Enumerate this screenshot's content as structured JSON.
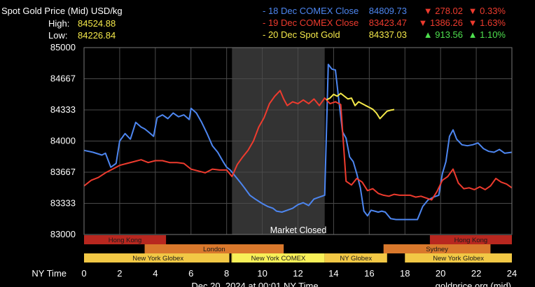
{
  "header": {
    "title": "Spot Gold Price (Mid) USD/kg",
    "high_label": "High:",
    "high_value": "84524.88",
    "low_label": "Low:",
    "low_value": "84226.84"
  },
  "legend": [
    {
      "label": "- 18 Dec COMEX Close",
      "value": "84809.73",
      "change": "▼ 278.02",
      "pct": "▼ 0.33%",
      "color": "#4d86f0",
      "change_color": "#ee3b2e"
    },
    {
      "label": "- 19 Dec COMEX Close",
      "value": "83423.47",
      "change": "▼ 1386.26",
      "pct": "▼ 1.63%",
      "color": "#ee3b2e",
      "change_color": "#ee3b2e"
    },
    {
      "label": "- 20 Dec Spot Gold",
      "value": "84337.03",
      "change": "▲ 913.56",
      "pct": "▲ 1.10%",
      "color": "#f5e94a",
      "change_color": "#4ee04e"
    }
  ],
  "market_closed_label": "Market Closed",
  "x_axis_title": "NY Time",
  "footer_left": "Dec 20, 2024 at 00:01 NY Time",
  "footer_right": "goldprice.org (mid)",
  "sessions": [
    {
      "name": "Hong Kong",
      "start": 0,
      "end": 4.6,
      "row": 0,
      "color": "#b8271f"
    },
    {
      "name": "Hong Kong",
      "start": 19.4,
      "end": 24,
      "row": 0,
      "color": "#b8271f"
    },
    {
      "name": "London",
      "start": 3.4,
      "end": 11.2,
      "row": 1,
      "color": "#d9782c"
    },
    {
      "name": "Sydney",
      "start": 16.8,
      "end": 22.8,
      "row": 1,
      "color": "#d9782c"
    },
    {
      "name": "New York Globex",
      "start": 0,
      "end": 8.3,
      "row": 2,
      "color": "#f2c845"
    },
    {
      "name": "New York COMEX",
      "start": 8.3,
      "end": 13.5,
      "row": 2,
      "color": "#f8f058"
    },
    {
      "name": "NY Globex",
      "start": 13.5,
      "end": 17.0,
      "row": 2,
      "color": "#f2c845"
    },
    {
      "name": "New York Globex",
      "start": 18.0,
      "end": 24,
      "row": 2,
      "color": "#f2c845"
    }
  ],
  "chart_data": {
    "type": "line",
    "xlabel": "NY Time",
    "ylabel": "USD/kg",
    "xlim": [
      0,
      24
    ],
    "ylim": [
      83000,
      85000
    ],
    "x_ticks": [
      0,
      2,
      4,
      6,
      8,
      10,
      12,
      14,
      16,
      18,
      20,
      22,
      24
    ],
    "y_ticks": [
      83000,
      83333,
      83667,
      84000,
      84333,
      84667,
      85000
    ],
    "grid": true,
    "shaded_region": {
      "start": 8.3,
      "end": 13.5,
      "label": "Market Closed"
    },
    "series": [
      {
        "name": "18 Dec COMEX Close",
        "color": "#4d86f0",
        "x": [
          0,
          0.5,
          1.0,
          1.2,
          1.5,
          1.8,
          2.0,
          2.3,
          2.6,
          2.9,
          3.2,
          3.4,
          3.6,
          3.9,
          4.1,
          4.4,
          4.7,
          5.0,
          5.3,
          5.6,
          5.9,
          6.0,
          6.3,
          6.6,
          6.9,
          7.2,
          7.5,
          7.8,
          8.0,
          8.2,
          8.5,
          8.8,
          9.0,
          9.3,
          9.6,
          10.0,
          10.3,
          10.6,
          10.8,
          11.1,
          11.4,
          11.7,
          12.0,
          12.3,
          12.6,
          12.9,
          13.2,
          13.5,
          13.7,
          13.9,
          14.1,
          14.3,
          14.5,
          14.7,
          14.9,
          15.1,
          15.3,
          15.5,
          15.7,
          15.9,
          16.1,
          16.3,
          16.5,
          16.7,
          16.9,
          17.2,
          17.5,
          17.8,
          18.1,
          18.4,
          18.7,
          19.0,
          19.3,
          19.6,
          19.9,
          20.1,
          20.3,
          20.5,
          20.7,
          20.9,
          21.2,
          21.5,
          21.8,
          22.1,
          22.4,
          22.7,
          23.0,
          23.3,
          23.6,
          24.0
        ],
        "values": [
          83900,
          83880,
          83850,
          83870,
          83720,
          83760,
          84000,
          84080,
          84020,
          84200,
          84150,
          84130,
          84100,
          84050,
          84250,
          84280,
          84240,
          84300,
          84260,
          84280,
          84230,
          84350,
          84300,
          84200,
          84080,
          83950,
          83880,
          83780,
          83720,
          83690,
          83620,
          83550,
          83500,
          83420,
          83380,
          83330,
          83300,
          83280,
          83250,
          83240,
          83260,
          83280,
          83320,
          83340,
          83310,
          83380,
          83400,
          83420,
          84820,
          84770,
          84760,
          84420,
          84100,
          84030,
          83830,
          83780,
          83650,
          83500,
          83250,
          83200,
          83260,
          83250,
          83240,
          83250,
          83240,
          83170,
          83160,
          83160,
          83160,
          83160,
          83160,
          83300,
          83370,
          83400,
          83420,
          83650,
          83780,
          84050,
          84120,
          84020,
          83960,
          83950,
          83960,
          83980,
          83920,
          83890,
          83880,
          83910,
          83870,
          83880
        ]
      },
      {
        "name": "19 Dec COMEX Close",
        "color": "#ee3b2e",
        "x": [
          0,
          0.4,
          0.8,
          1.2,
          1.6,
          2.0,
          2.4,
          2.8,
          3.2,
          3.6,
          4.0,
          4.4,
          4.8,
          5.2,
          5.6,
          6.0,
          6.4,
          6.8,
          7.2,
          7.6,
          8.0,
          8.3,
          8.6,
          8.9,
          9.2,
          9.5,
          9.8,
          10.1,
          10.4,
          10.7,
          11.0,
          11.2,
          11.4,
          11.7,
          12.0,
          12.3,
          12.6,
          12.9,
          13.2,
          13.5,
          13.8,
          14.1,
          14.4,
          14.7,
          15.0,
          15.3,
          15.6,
          15.9,
          16.2,
          16.5,
          16.8,
          17.1,
          17.4,
          17.7,
          18.0,
          18.3,
          18.6,
          18.9,
          19.2,
          19.5,
          19.8,
          20.1,
          20.4,
          20.7,
          21.0,
          21.3,
          21.6,
          21.9,
          22.2,
          22.5,
          22.8,
          23.1,
          23.4,
          23.7,
          24.0
        ],
        "values": [
          83520,
          83580,
          83610,
          83660,
          83700,
          83740,
          83760,
          83780,
          83800,
          83770,
          83790,
          83790,
          83770,
          83770,
          83760,
          83700,
          83680,
          83660,
          83700,
          83690,
          83690,
          83620,
          83750,
          83830,
          83900,
          84000,
          84150,
          84250,
          84400,
          84480,
          84540,
          84450,
          84380,
          84420,
          84400,
          84440,
          84400,
          84450,
          84380,
          84460,
          84400,
          84420,
          84390,
          83570,
          83530,
          83600,
          83560,
          83470,
          83490,
          83440,
          83420,
          83410,
          83430,
          83420,
          83420,
          83420,
          83400,
          83410,
          83390,
          83370,
          83460,
          83580,
          83620,
          83700,
          83550,
          83490,
          83500,
          83480,
          83510,
          83480,
          83520,
          83600,
          83560,
          83540,
          83500
        ]
      },
      {
        "name": "20 Dec Spot Gold",
        "color": "#f5e94a",
        "x": [
          13.6,
          13.8,
          14.0,
          14.2,
          14.4,
          14.6,
          14.8,
          15.0,
          15.2,
          15.4,
          15.6,
          15.8,
          16.0,
          16.2,
          16.4,
          16.6,
          16.8,
          17.0,
          17.2,
          17.4
        ],
        "values": [
          84440,
          84460,
          84500,
          84480,
          84510,
          84480,
          84450,
          84460,
          84380,
          84420,
          84400,
          84380,
          84360,
          84340,
          84300,
          84240,
          84280,
          84320,
          84330,
          84337
        ]
      }
    ]
  }
}
